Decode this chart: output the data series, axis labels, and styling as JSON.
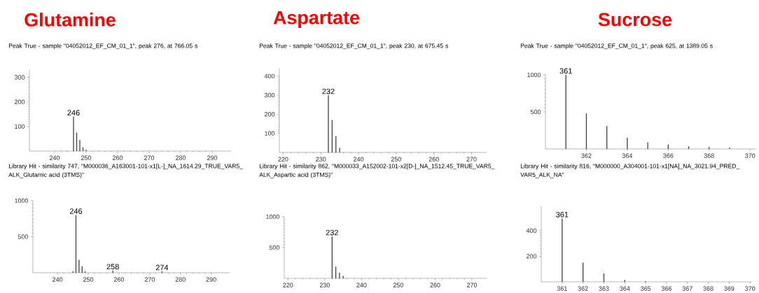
{
  "chart_data": [
    {
      "type": "bar",
      "title": "Glutamine",
      "subtitle": "Peak True - sample \"04052012_EF_CM_01_1\", peak 276, at 766.05 s",
      "x": [
        246,
        247,
        248,
        249,
        250
      ],
      "values": [
        140,
        75,
        45,
        15,
        5
      ],
      "annotations": [
        {
          "text": "246",
          "x": 246,
          "y": 140
        }
      ],
      "color": "#404040",
      "xlim": [
        232,
        296
      ],
      "ylim": [
        0,
        330
      ],
      "xticks": [
        240,
        250,
        260,
        270,
        280,
        290
      ],
      "yticks": [
        100,
        200,
        300
      ]
    },
    {
      "type": "bar",
      "title": "Aspartate",
      "subtitle": "Peak True - sample \"04052012_EF_CM_01_1\", peak 230, at 675.45 s",
      "x": [
        232,
        233,
        234,
        235
      ],
      "values": [
        300,
        170,
        85,
        25
      ],
      "annotations": [
        {
          "text": "232",
          "x": 232,
          "y": 300
        }
      ],
      "color": "#404040",
      "xlim": [
        219,
        274
      ],
      "ylim": [
        0,
        440
      ],
      "xticks": [
        220,
        230,
        240,
        250,
        260,
        270
      ],
      "yticks": [
        100,
        200,
        300,
        400
      ]
    },
    {
      "type": "bar",
      "title": "Sucrose",
      "subtitle": "Peak True - sample \"04052012_EF_CM_01_1\", peak 625, at 1389.05 s",
      "x": [
        361,
        362,
        363,
        364,
        365,
        366,
        367,
        368,
        369
      ],
      "values": [
        1000,
        480,
        310,
        150,
        90,
        60,
        35,
        25,
        20
      ],
      "annotations": [
        {
          "text": "361",
          "x": 361,
          "y": 1000
        }
      ],
      "color": "#404040",
      "xlim": [
        360,
        370.3
      ],
      "ylim": [
        0,
        1010
      ],
      "xticks": [
        362,
        364,
        366,
        368,
        370
      ],
      "yticks": [
        500,
        1000
      ]
    },
    {
      "type": "bar",
      "title": "Library Hit - similarity 747, \"M000036_A163001-101-x1[L-]_NA_1614.29_TRUE_VAR5_ALK_Glutamic acid (3TMS)\"",
      "x": [
        245,
        246,
        247,
        248,
        249,
        258,
        274
      ],
      "values": [
        20,
        800,
        180,
        90,
        20,
        30,
        20
      ],
      "annotations": [
        {
          "text": "246",
          "x": 246,
          "y": 800
        },
        {
          "text": "258",
          "x": 258,
          "y": 30
        },
        {
          "text": "274",
          "x": 274,
          "y": 20
        }
      ],
      "color": "#404040",
      "xlim": [
        232,
        296
      ],
      "ylim": [
        0,
        1000
      ],
      "xticks": [
        240,
        250,
        260,
        270,
        280,
        290
      ],
      "yticks": [
        500,
        1000
      ]
    },
    {
      "type": "bar",
      "title": "Library Hit - similarity 862, \"M000033_A152002-101-x2[D-]_NA_1512.45_TRUE_VAR5_ALK_Aspartic acid (3TMS)\"",
      "x": [
        232,
        233,
        234,
        235
      ],
      "values": [
        680,
        190,
        90,
        40
      ],
      "annotations": [
        {
          "text": "232",
          "x": 232,
          "y": 680
        }
      ],
      "color": "#404040",
      "xlim": [
        219,
        274
      ],
      "ylim": [
        0,
        1000
      ],
      "xticks": [
        220,
        230,
        240,
        250,
        260,
        270
      ],
      "yticks": [
        500,
        1000
      ]
    },
    {
      "type": "bar",
      "title": "Library Hit - similarity 816, \"M000000_A304001-101-x1[NA]_NA_3021.94_PRED_VAR5_ALK_NA\"",
      "x": [
        361,
        362,
        363,
        364,
        365
      ],
      "values": [
        495,
        150,
        65,
        15,
        5
      ],
      "annotations": [
        {
          "text": "361",
          "x": 361,
          "y": 495
        }
      ],
      "color": "#404040",
      "xlim": [
        360,
        370.06
      ],
      "ylim": [
        0,
        590
      ],
      "xticks": [
        361,
        362,
        363,
        364,
        365,
        366,
        367,
        368,
        369,
        370
      ],
      "yticks": [
        200,
        400
      ]
    }
  ]
}
